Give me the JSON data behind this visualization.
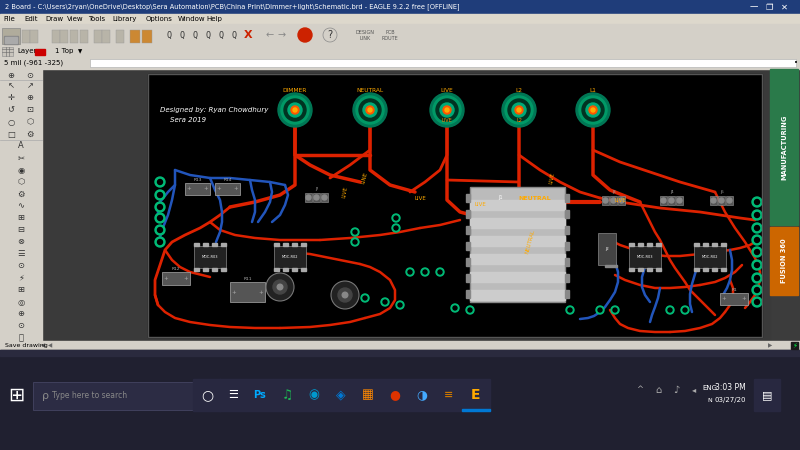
{
  "title_bar": "2 Board - C:\\Users\\2ryan\\OneDrive\\Desktop\\Sera Automation\\PCB\\China Print\\Dimmer+light\\Schematic.brd - EAGLE 9.2.2 free [OFFLINE]",
  "menu_items": [
    "File",
    "Edit",
    "Draw",
    "View",
    "Tools",
    "Library",
    "Options",
    "Window",
    "Help"
  ],
  "layer_label": "Layer:",
  "layer_value": "1 Top",
  "coord_display": "5 mil (-961 -325)",
  "save_drawing": "Save drawing",
  "taskbar_search": "Type here to search",
  "time_display": "3:03 PM",
  "date_display": "03/27/20",
  "right_panel1": "MANUFACTURING",
  "right_panel2": "FUSION 360",
  "designer_text1": "Designed by: Ryan Chowdhury",
  "designer_text2": "Sera 2019",
  "bg_color": "#3c3c3c",
  "pcb_bg": "#000000",
  "toolbar_bg": "#d4d0c8",
  "title_bg": "#1f3d7a",
  "green_pad_color": "#00cc88",
  "red_trace_color": "#cc2200",
  "blue_trace_color": "#2255cc",
  "yellow_text_color": "#ffaa00",
  "white_text_color": "#ffffff",
  "workspace_bg": "#3a3a3a",
  "right_mfg_bg": "#2a7a4a",
  "right_fusion_bg": "#cc6600",
  "taskbar_bg": "#202030",
  "status_bar_bg": "#d4d0c8",
  "pcb_border_color": "#666666",
  "component_dark": "#222222",
  "component_gray": "#555555",
  "component_light": "#888888",
  "ic_gray": "#bbbbbb",
  "trace_red": "#dd2200",
  "trace_blue": "#2255bb",
  "pad_green": "#00bb77"
}
